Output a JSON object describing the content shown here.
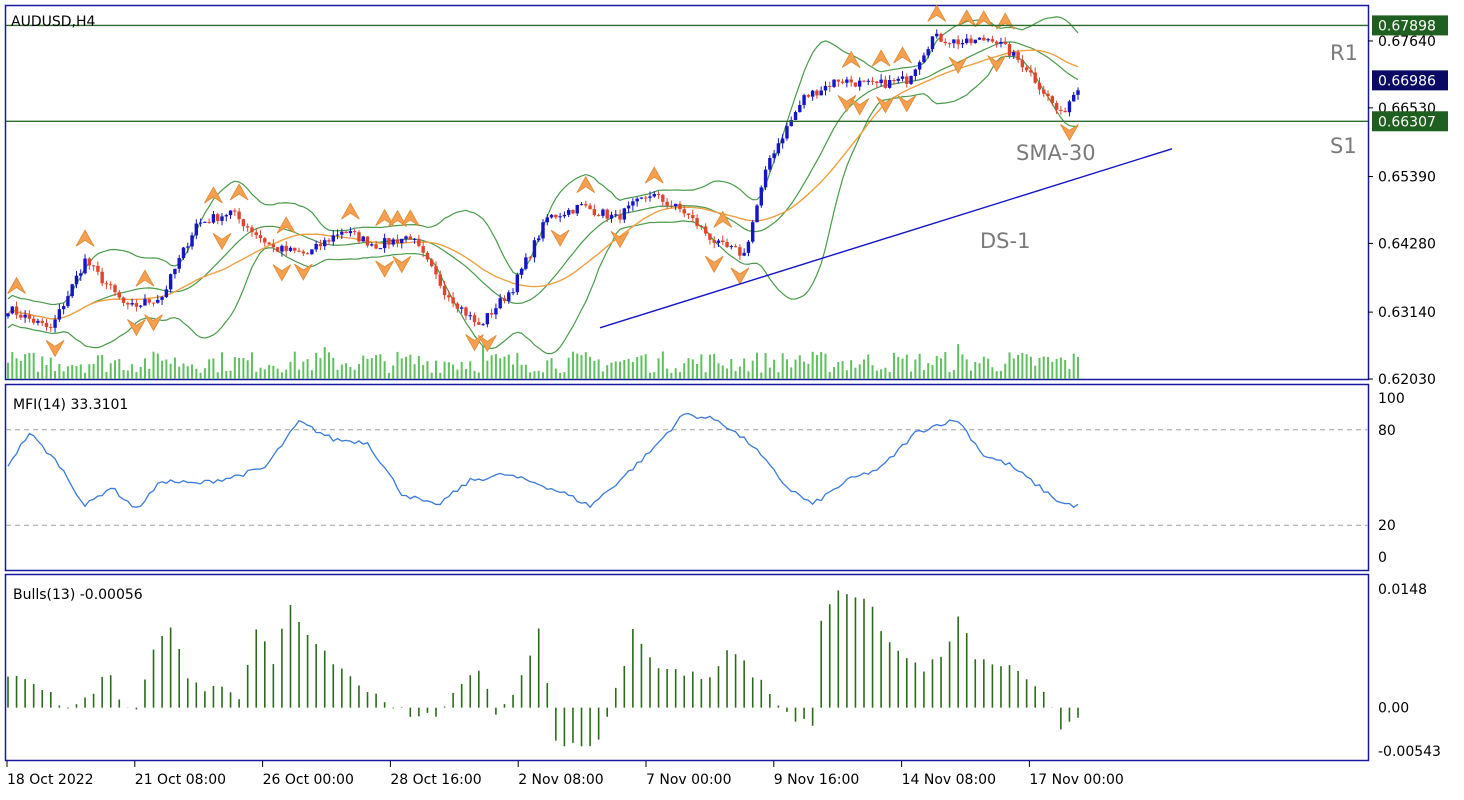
{
  "chart_data": [
    {
      "type": "candlestick",
      "title": "AUDUSD,H4",
      "ylim": [
        0.6203,
        0.6822
      ],
      "price_ticks": [
        "0.67640",
        "0.66530",
        "0.65390",
        "0.64280",
        "0.63140",
        "0.62030"
      ],
      "badges": [
        {
          "label": "0.67898",
          "value": 0.67898,
          "color": "#1f5f1f"
        },
        {
          "label": "0.66986",
          "value": 0.66986,
          "color": "#0a0a64"
        },
        {
          "label": "0.66307",
          "value": 0.66307,
          "color": "#1f5f1f"
        }
      ],
      "levels": [
        {
          "name": "R1",
          "value": 0.67898
        },
        {
          "name": "S1",
          "value": 0.66307
        }
      ],
      "objects": [
        {
          "label": "SMA-30"
        },
        {
          "label": "DS-1"
        }
      ],
      "trendline": {
        "from": [
          0.1,
          0.6288
        ],
        "to": [
          0.2,
          0.6585
        ]
      },
      "colors": {
        "bull": "#1414c8",
        "bear": "#e0442a",
        "bollinger": "#4a9a4a",
        "sma": "#f0a040",
        "volume": "#5fc05f",
        "level": "#2a6a2a"
      },
      "x_ticks": [
        "18 Oct 2022",
        "21 Oct 08:00",
        "26 Oct 00:00",
        "28 Oct 16:00",
        "2 Nov 08:00",
        "7 Nov 00:00",
        "9 Nov 16:00",
        "14 Nov 08:00",
        "17 Nov 00:00"
      ],
      "anchors": [
        [
          0,
          0.632
        ],
        [
          10,
          0.6285
        ],
        [
          18,
          0.64
        ],
        [
          28,
          0.632
        ],
        [
          36,
          0.634
        ],
        [
          44,
          0.646
        ],
        [
          52,
          0.648
        ],
        [
          62,
          0.642
        ],
        [
          70,
          0.641
        ],
        [
          78,
          0.645
        ],
        [
          86,
          0.6425
        ],
        [
          94,
          0.644
        ],
        [
          102,
          0.635
        ],
        [
          110,
          0.629
        ],
        [
          118,
          0.6355
        ],
        [
          126,
          0.647
        ],
        [
          134,
          0.649
        ],
        [
          142,
          0.647
        ],
        [
          150,
          0.651
        ],
        [
          158,
          0.648
        ],
        [
          166,
          0.6425
        ],
        [
          172,
          0.641
        ],
        [
          178,
          0.657
        ],
        [
          186,
          0.667
        ],
        [
          194,
          0.67
        ],
        [
          202,
          0.669
        ],
        [
          210,
          0.67
        ],
        [
          216,
          0.677
        ],
        [
          224,
          0.676
        ],
        [
          230,
          0.677
        ],
        [
          238,
          0.672
        ],
        [
          246,
          0.664
        ],
        [
          250,
          0.669
        ]
      ]
    },
    {
      "type": "line",
      "title": "MFI(14) 33.3101",
      "ylim": [
        0,
        100
      ],
      "y_ticks": [
        "100",
        "80",
        "20",
        "0"
      ],
      "levels": [
        80,
        20
      ],
      "anchors": [
        [
          0,
          58
        ],
        [
          5,
          78
        ],
        [
          12,
          58
        ],
        [
          18,
          32
        ],
        [
          24,
          44
        ],
        [
          30,
          30
        ],
        [
          36,
          48
        ],
        [
          44,
          46
        ],
        [
          52,
          50
        ],
        [
          60,
          56
        ],
        [
          68,
          85
        ],
        [
          76,
          74
        ],
        [
          84,
          72
        ],
        [
          92,
          40
        ],
        [
          100,
          32
        ],
        [
          108,
          48
        ],
        [
          116,
          52
        ],
        [
          124,
          46
        ],
        [
          130,
          40
        ],
        [
          136,
          32
        ],
        [
          142,
          46
        ],
        [
          150,
          66
        ],
        [
          158,
          90
        ],
        [
          166,
          86
        ],
        [
          174,
          70
        ],
        [
          182,
          44
        ],
        [
          188,
          33
        ],
        [
          196,
          48
        ],
        [
          204,
          56
        ],
        [
          212,
          78
        ],
        [
          218,
          84
        ],
        [
          222,
          86
        ],
        [
          228,
          64
        ],
        [
          234,
          58
        ],
        [
          240,
          46
        ],
        [
          246,
          34
        ],
        [
          250,
          32
        ]
      ]
    },
    {
      "type": "bar",
      "title": "Bulls(13) -0.00056",
      "ylim": [
        -0.0064,
        0.0164
      ],
      "y_ticks": [
        "0.0148",
        "0.00",
        "-0.00543"
      ],
      "anchors": [
        [
          0,
          0.004
        ],
        [
          5,
          0.003
        ],
        [
          10,
          0.0015
        ],
        [
          15,
          -0.0005
        ],
        [
          20,
          0.002
        ],
        [
          23,
          0.005
        ],
        [
          26,
          0.001
        ],
        [
          30,
          -0.0004
        ],
        [
          35,
          0.009
        ],
        [
          38,
          0.0095
        ],
        [
          42,
          0.004
        ],
        [
          46,
          0.0015
        ],
        [
          50,
          0.003
        ],
        [
          54,
          0.0015
        ],
        [
          58,
          0.0095
        ],
        [
          62,
          0.006
        ],
        [
          66,
          0.0128
        ],
        [
          72,
          0.008
        ],
        [
          78,
          0.005
        ],
        [
          84,
          0.002
        ],
        [
          90,
          0.0005
        ],
        [
          94,
          -0.0015
        ],
        [
          100,
          -0.001
        ],
        [
          106,
          0.0035
        ],
        [
          110,
          0.004
        ],
        [
          114,
          -0.0005
        ],
        [
          118,
          0.0015
        ],
        [
          124,
          0.0095
        ],
        [
          128,
          -0.004
        ],
        [
          132,
          -0.0045
        ],
        [
          138,
          -0.0045
        ],
        [
          142,
          0.002
        ],
        [
          146,
          0.0095
        ],
        [
          150,
          0.006
        ],
        [
          154,
          0.005
        ],
        [
          158,
          0.004
        ],
        [
          164,
          0.004
        ],
        [
          168,
          0.0075
        ],
        [
          172,
          0.0055
        ],
        [
          176,
          0.003
        ],
        [
          180,
          0.0005
        ],
        [
          184,
          -0.0015
        ],
        [
          188,
          -0.002
        ],
        [
          190,
          0.011
        ],
        [
          194,
          0.015
        ],
        [
          198,
          0.014
        ],
        [
          202,
          0.012
        ],
        [
          206,
          0.008
        ],
        [
          210,
          0.006
        ],
        [
          214,
          0.005
        ],
        [
          218,
          0.006
        ],
        [
          222,
          0.011
        ],
        [
          226,
          0.0065
        ],
        [
          230,
          0.005
        ],
        [
          234,
          0.0055
        ],
        [
          238,
          0.003
        ],
        [
          242,
          0.0015
        ],
        [
          246,
          -0.0025
        ],
        [
          250,
          -0.0008
        ]
      ]
    }
  ]
}
